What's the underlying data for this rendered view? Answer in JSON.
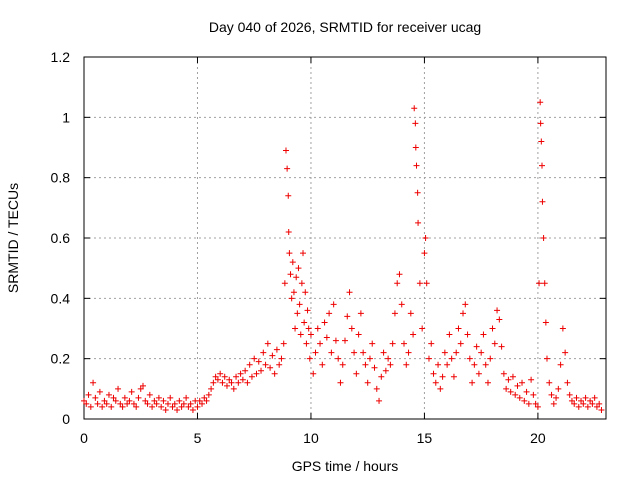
{
  "chart_data": {
    "type": "scatter",
    "title": "Day 040 of 2026, SRMTID for receiver ucag",
    "xlabel": "GPS time / hours",
    "ylabel": "SRMTID / TECUs",
    "xlim": [
      0,
      23
    ],
    "ylim": [
      0,
      1.2
    ],
    "xticks": [
      0,
      5,
      10,
      15,
      20
    ],
    "yticks": [
      0,
      0.2,
      0.4,
      0.6,
      0.8,
      1,
      1.2
    ],
    "ytick_labels": [
      "0",
      "0.2",
      "0.4",
      "0.6",
      "0.8",
      "1",
      "1.2"
    ],
    "grid": true,
    "marker": "+",
    "color": "#ee0000",
    "series": [
      {
        "name": "SRMTID",
        "points": [
          [
            0.0,
            0.06
          ],
          [
            0.1,
            0.05
          ],
          [
            0.2,
            0.08
          ],
          [
            0.3,
            0.04
          ],
          [
            0.4,
            0.12
          ],
          [
            0.5,
            0.07
          ],
          [
            0.6,
            0.05
          ],
          [
            0.7,
            0.09
          ],
          [
            0.8,
            0.04
          ],
          [
            0.9,
            0.06
          ],
          [
            1.0,
            0.05
          ],
          [
            1.1,
            0.08
          ],
          [
            1.2,
            0.04
          ],
          [
            1.3,
            0.07
          ],
          [
            1.4,
            0.06
          ],
          [
            1.5,
            0.1
          ],
          [
            1.6,
            0.05
          ],
          [
            1.7,
            0.04
          ],
          [
            1.8,
            0.07
          ],
          [
            1.9,
            0.05
          ],
          [
            2.0,
            0.06
          ],
          [
            2.1,
            0.09
          ],
          [
            2.2,
            0.05
          ],
          [
            2.3,
            0.04
          ],
          [
            2.4,
            0.07
          ],
          [
            2.5,
            0.1
          ],
          [
            2.6,
            0.11
          ],
          [
            2.7,
            0.06
          ],
          [
            2.8,
            0.05
          ],
          [
            2.9,
            0.08
          ],
          [
            3.0,
            0.04
          ],
          [
            3.1,
            0.06
          ],
          [
            3.2,
            0.05
          ],
          [
            3.3,
            0.07
          ],
          [
            3.4,
            0.04
          ],
          [
            3.5,
            0.06
          ],
          [
            3.6,
            0.03
          ],
          [
            3.7,
            0.05
          ],
          [
            3.8,
            0.07
          ],
          [
            3.9,
            0.04
          ],
          [
            4.0,
            0.05
          ],
          [
            4.1,
            0.03
          ],
          [
            4.2,
            0.06
          ],
          [
            4.3,
            0.04
          ],
          [
            4.4,
            0.05
          ],
          [
            4.5,
            0.07
          ],
          [
            4.6,
            0.04
          ],
          [
            4.7,
            0.05
          ],
          [
            4.8,
            0.03
          ],
          [
            4.9,
            0.06
          ],
          [
            5.0,
            0.04
          ],
          [
            5.1,
            0.06
          ],
          [
            5.2,
            0.05
          ],
          [
            5.3,
            0.07
          ],
          [
            5.4,
            0.06
          ],
          [
            5.5,
            0.08
          ],
          [
            5.6,
            0.1
          ],
          [
            5.7,
            0.12
          ],
          [
            5.8,
            0.14
          ],
          [
            5.9,
            0.13
          ],
          [
            6.0,
            0.15
          ],
          [
            6.1,
            0.12
          ],
          [
            6.2,
            0.14
          ],
          [
            6.3,
            0.11
          ],
          [
            6.4,
            0.13
          ],
          [
            6.5,
            0.12
          ],
          [
            6.6,
            0.1
          ],
          [
            6.7,
            0.14
          ],
          [
            6.8,
            0.12
          ],
          [
            6.9,
            0.15
          ],
          [
            7.0,
            0.13
          ],
          [
            7.1,
            0.16
          ],
          [
            7.2,
            0.12
          ],
          [
            7.3,
            0.18
          ],
          [
            7.4,
            0.14
          ],
          [
            7.5,
            0.2
          ],
          [
            7.6,
            0.15
          ],
          [
            7.7,
            0.19
          ],
          [
            7.8,
            0.16
          ],
          [
            7.9,
            0.22
          ],
          [
            8.0,
            0.18
          ],
          [
            8.1,
            0.25
          ],
          [
            8.2,
            0.17
          ],
          [
            8.3,
            0.21
          ],
          [
            8.4,
            0.15
          ],
          [
            8.5,
            0.23
          ],
          [
            8.6,
            0.18
          ],
          [
            8.7,
            0.2
          ],
          [
            8.8,
            0.25
          ],
          [
            8.85,
            0.45
          ],
          [
            8.9,
            0.89
          ],
          [
            8.95,
            0.83
          ],
          [
            9.0,
            0.74
          ],
          [
            9.02,
            0.62
          ],
          [
            9.05,
            0.55
          ],
          [
            9.1,
            0.48
          ],
          [
            9.15,
            0.4
          ],
          [
            9.2,
            0.52
          ],
          [
            9.25,
            0.42
          ],
          [
            9.3,
            0.3
          ],
          [
            9.35,
            0.47
          ],
          [
            9.4,
            0.35
          ],
          [
            9.45,
            0.5
          ],
          [
            9.5,
            0.38
          ],
          [
            9.55,
            0.28
          ],
          [
            9.6,
            0.45
          ],
          [
            9.65,
            0.55
          ],
          [
            9.7,
            0.32
          ],
          [
            9.75,
            0.42
          ],
          [
            9.8,
            0.25
          ],
          [
            9.85,
            0.36
          ],
          [
            9.9,
            0.3
          ],
          [
            9.95,
            0.2
          ],
          [
            10.0,
            0.28
          ],
          [
            10.1,
            0.15
          ],
          [
            10.2,
            0.22
          ],
          [
            10.3,
            0.3
          ],
          [
            10.4,
            0.25
          ],
          [
            10.5,
            0.18
          ],
          [
            10.6,
            0.32
          ],
          [
            10.7,
            0.27
          ],
          [
            10.8,
            0.35
          ],
          [
            10.9,
            0.22
          ],
          [
            11.0,
            0.38
          ],
          [
            11.1,
            0.26
          ],
          [
            11.2,
            0.2
          ],
          [
            11.3,
            0.12
          ],
          [
            11.4,
            0.18
          ],
          [
            11.5,
            0.26
          ],
          [
            11.6,
            0.34
          ],
          [
            11.7,
            0.42
          ],
          [
            11.8,
            0.3
          ],
          [
            11.9,
            0.22
          ],
          [
            12.0,
            0.15
          ],
          [
            12.1,
            0.28
          ],
          [
            12.2,
            0.35
          ],
          [
            12.3,
            0.22
          ],
          [
            12.4,
            0.18
          ],
          [
            12.5,
            0.12
          ],
          [
            12.6,
            0.2
          ],
          [
            12.7,
            0.25
          ],
          [
            12.8,
            0.17
          ],
          [
            12.9,
            0.1
          ],
          [
            13.0,
            0.06
          ],
          [
            13.1,
            0.14
          ],
          [
            13.2,
            0.22
          ],
          [
            13.3,
            0.16
          ],
          [
            13.4,
            0.2
          ],
          [
            13.5,
            0.18
          ],
          [
            13.6,
            0.25
          ],
          [
            13.7,
            0.35
          ],
          [
            13.8,
            0.45
          ],
          [
            13.9,
            0.48
          ],
          [
            14.0,
            0.38
          ],
          [
            14.1,
            0.25
          ],
          [
            14.2,
            0.18
          ],
          [
            14.3,
            0.22
          ],
          [
            14.4,
            0.35
          ],
          [
            14.5,
            0.28
          ],
          [
            14.55,
            1.03
          ],
          [
            14.6,
            0.98
          ],
          [
            14.62,
            0.9
          ],
          [
            14.65,
            0.84
          ],
          [
            14.7,
            0.75
          ],
          [
            14.72,
            0.65
          ],
          [
            14.8,
            0.45
          ],
          [
            14.9,
            0.3
          ],
          [
            15.0,
            0.55
          ],
          [
            15.05,
            0.6
          ],
          [
            15.1,
            0.45
          ],
          [
            15.2,
            0.2
          ],
          [
            15.3,
            0.25
          ],
          [
            15.4,
            0.15
          ],
          [
            15.5,
            0.12
          ],
          [
            15.6,
            0.18
          ],
          [
            15.7,
            0.1
          ],
          [
            15.8,
            0.14
          ],
          [
            15.9,
            0.22
          ],
          [
            16.0,
            0.18
          ],
          [
            16.1,
            0.28
          ],
          [
            16.2,
            0.2
          ],
          [
            16.3,
            0.14
          ],
          [
            16.4,
            0.22
          ],
          [
            16.5,
            0.3
          ],
          [
            16.6,
            0.25
          ],
          [
            16.7,
            0.35
          ],
          [
            16.8,
            0.38
          ],
          [
            16.9,
            0.28
          ],
          [
            17.0,
            0.2
          ],
          [
            17.1,
            0.12
          ],
          [
            17.2,
            0.18
          ],
          [
            17.3,
            0.24
          ],
          [
            17.4,
            0.15
          ],
          [
            17.5,
            0.22
          ],
          [
            17.6,
            0.28
          ],
          [
            17.7,
            0.18
          ],
          [
            17.8,
            0.12
          ],
          [
            17.9,
            0.2
          ],
          [
            18.0,
            0.3
          ],
          [
            18.1,
            0.25
          ],
          [
            18.2,
            0.36
          ],
          [
            18.3,
            0.33
          ],
          [
            18.4,
            0.24
          ],
          [
            18.5,
            0.15
          ],
          [
            18.6,
            0.1
          ],
          [
            18.7,
            0.13
          ],
          [
            18.8,
            0.09
          ],
          [
            18.9,
            0.14
          ],
          [
            19.0,
            0.08
          ],
          [
            19.1,
            0.11
          ],
          [
            19.2,
            0.07
          ],
          [
            19.3,
            0.12
          ],
          [
            19.4,
            0.06
          ],
          [
            19.5,
            0.09
          ],
          [
            19.6,
            0.05
          ],
          [
            19.7,
            0.13
          ],
          [
            19.8,
            0.08
          ],
          [
            19.9,
            0.05
          ],
          [
            20.0,
            0.04
          ],
          [
            20.05,
            0.45
          ],
          [
            20.1,
            1.05
          ],
          [
            20.12,
            0.98
          ],
          [
            20.15,
            0.92
          ],
          [
            20.18,
            0.84
          ],
          [
            20.2,
            0.72
          ],
          [
            20.25,
            0.6
          ],
          [
            20.3,
            0.45
          ],
          [
            20.35,
            0.32
          ],
          [
            20.4,
            0.2
          ],
          [
            20.5,
            0.12
          ],
          [
            20.6,
            0.08
          ],
          [
            20.7,
            0.05
          ],
          [
            20.8,
            0.07
          ],
          [
            20.9,
            0.1
          ],
          [
            21.0,
            0.18
          ],
          [
            21.1,
            0.3
          ],
          [
            21.2,
            0.22
          ],
          [
            21.3,
            0.12
          ],
          [
            21.4,
            0.08
          ],
          [
            21.5,
            0.06
          ],
          [
            21.6,
            0.05
          ],
          [
            21.7,
            0.07
          ],
          [
            21.8,
            0.04
          ],
          [
            21.9,
            0.06
          ],
          [
            22.0,
            0.05
          ],
          [
            22.1,
            0.07
          ],
          [
            22.2,
            0.04
          ],
          [
            22.3,
            0.06
          ],
          [
            22.4,
            0.05
          ],
          [
            22.5,
            0.07
          ],
          [
            22.6,
            0.04
          ],
          [
            22.7,
            0.05
          ],
          [
            22.8,
            0.03
          ]
        ]
      }
    ]
  }
}
